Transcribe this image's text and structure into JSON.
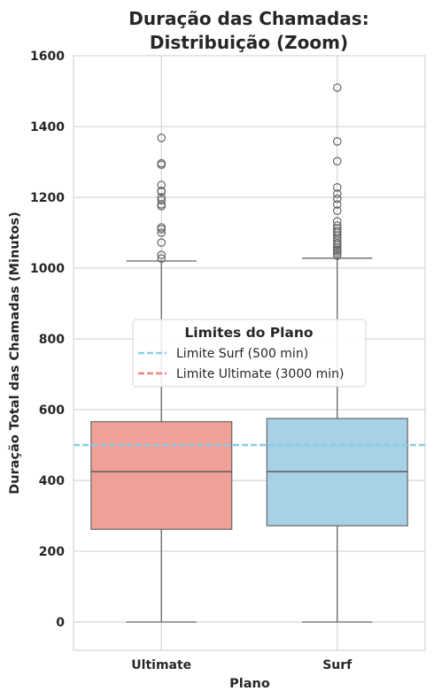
{
  "chart_data": {
    "type": "box",
    "title_lines": [
      "Duração das Chamadas:",
      "Distribuição (Zoom)"
    ],
    "xlabel": "Plano",
    "ylabel": "Duração Total das Chamadas (Minutos)",
    "ylim": [
      -80,
      1600
    ],
    "yticks": [
      0,
      200,
      400,
      600,
      800,
      1000,
      1200,
      1400,
      1600
    ],
    "grid": true,
    "categories": [
      "Ultimate",
      "Surf"
    ],
    "boxes": [
      {
        "name": "Ultimate",
        "color": "#f1a097",
        "min": 0,
        "q1": 262,
        "median": 425,
        "q3": 566,
        "max": 1020,
        "outliers": [
          1027,
          1037,
          1072,
          1100,
          1110,
          1115,
          1175,
          1180,
          1192,
          1200,
          1216,
          1218,
          1235,
          1292,
          1296,
          1368
        ]
      },
      {
        "name": "Surf",
        "color": "#a6d1e6",
        "min": 0,
        "q1": 272,
        "median": 425,
        "q3": 575,
        "max": 1028,
        "outliers": [
          1035,
          1042,
          1048,
          1052,
          1058,
          1065,
          1070,
          1078,
          1085,
          1092,
          1100,
          1105,
          1112,
          1120,
          1132,
          1162,
          1180,
          1196,
          1210,
          1228,
          1302,
          1358,
          1510
        ]
      }
    ],
    "reference_lines": [
      {
        "name": "Limite Surf (500 min)",
        "value": 500,
        "color": "#87ceeb",
        "style": "dashed"
      },
      {
        "name": "Limite Ultimate (3000 min)",
        "value": 3000,
        "color": "#f08080",
        "style": "dashed"
      }
    ],
    "legend": {
      "title": "Limites do Plano",
      "placement": "center-right",
      "entries": [
        "Limite Surf (500 min)",
        "Limite Ultimate (3000 min)"
      ]
    }
  },
  "colors": {
    "median_line": "#5a5a5a",
    "whisker": "#666666",
    "box_edge": "#6e6e6e",
    "grid": "#cccccc",
    "spine": "#cccccc"
  }
}
